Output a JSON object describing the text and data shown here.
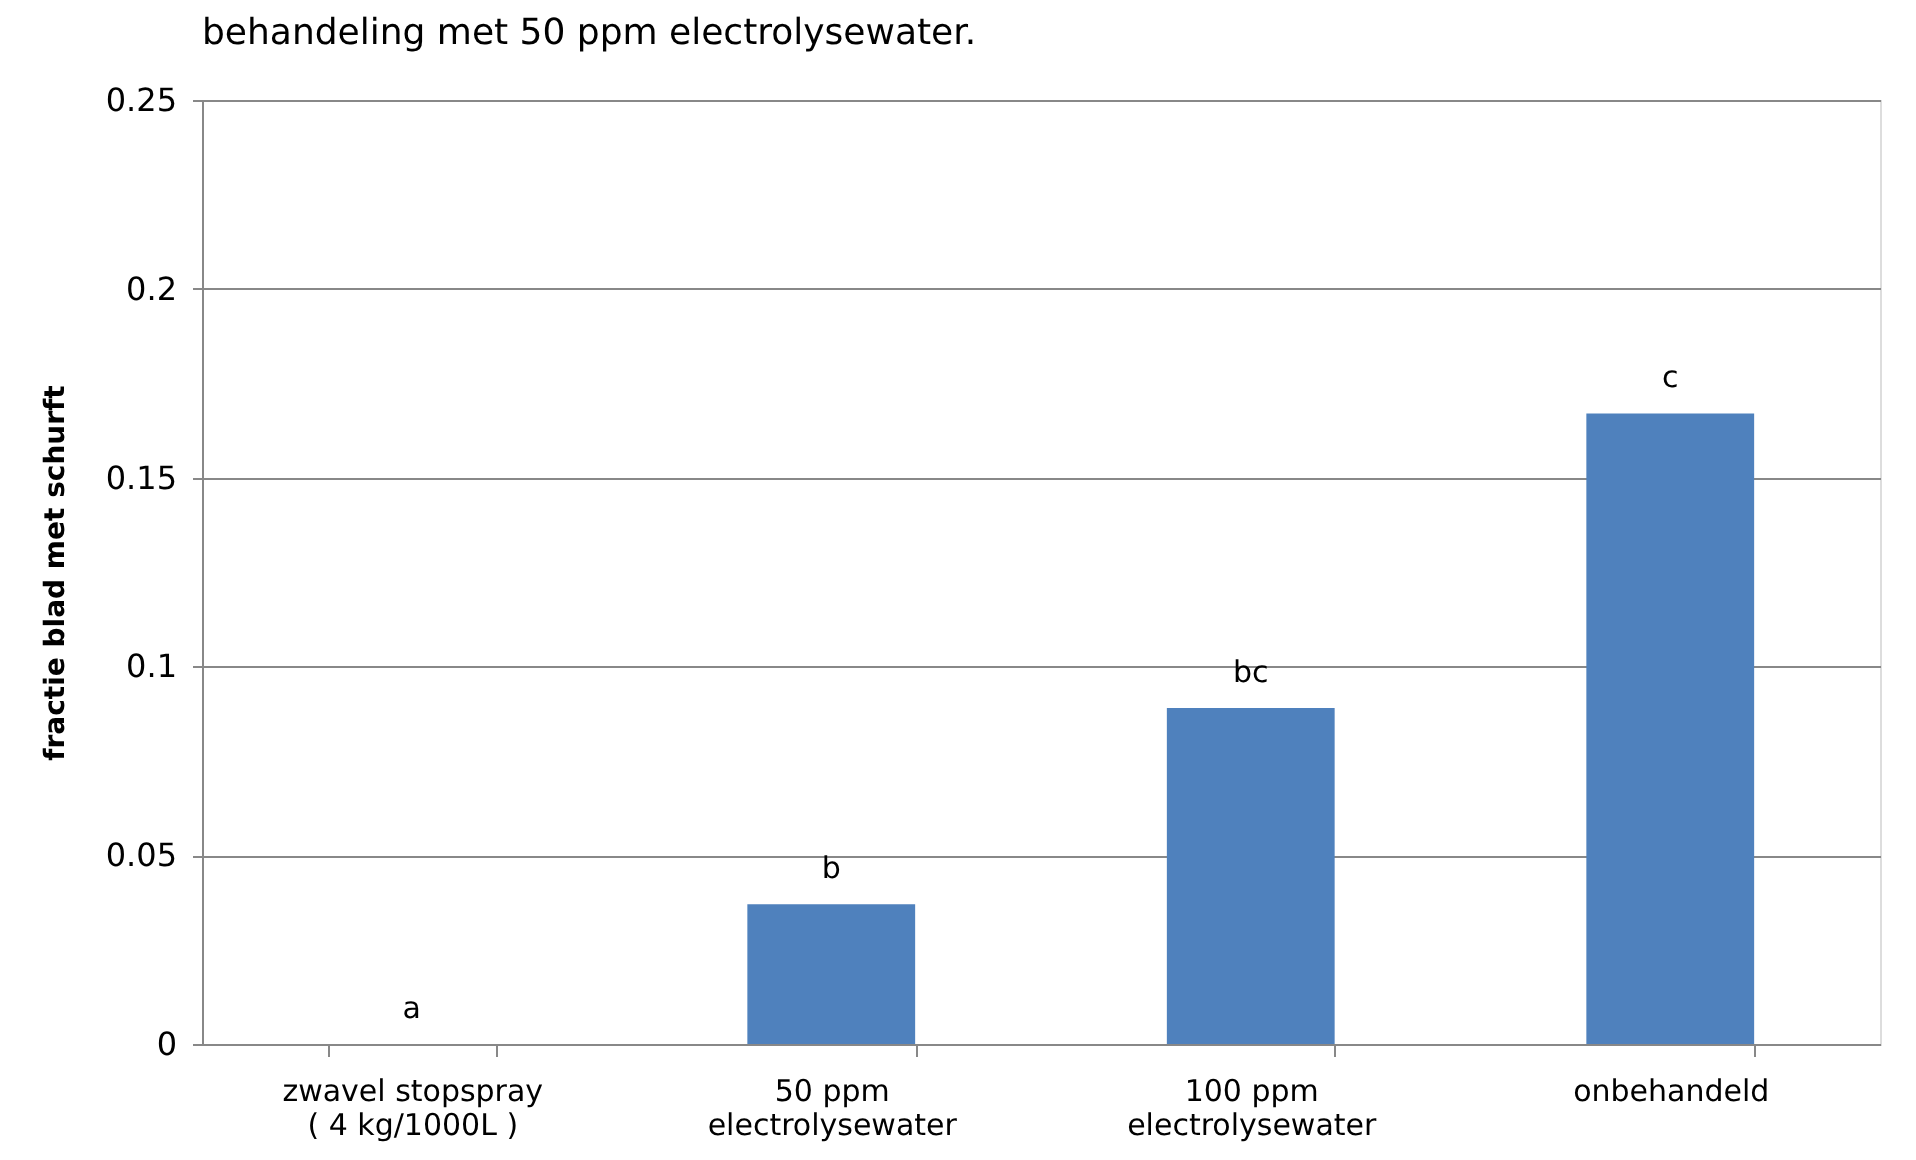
{
  "chart_data": {
    "type": "bar",
    "title": "behandeling met 50 ppm electrolysewater.",
    "ylabel": "fractie blad met schurft",
    "categories": [
      "zwavel stopspray\n( 4 kg/1000L )",
      "50 ppm\nelectrolysewater",
      "100 ppm\nelectrolysewater",
      "onbehandeld"
    ],
    "values": [
      0,
      0.037,
      0.089,
      0.167
    ],
    "color": "#4f81bd",
    "ylim": [
      0,
      0.25
    ],
    "yticks": [
      0,
      0.05,
      0.1,
      0.15,
      0.2,
      0.25
    ],
    "grid": "y",
    "annotations": [
      {
        "text": "a",
        "x": "zwavel stopspray\n( 4 kg/1000L )",
        "y": 0
      },
      {
        "text": "b",
        "x": "50 ppm\nelectrolysewater",
        "y": 0.037
      },
      {
        "text": "bc",
        "x": "100 ppm\nelectrolysewater",
        "y": 0.089
      },
      {
        "text": "c",
        "x": "onbehandeld",
        "y": 0.167
      }
    ]
  }
}
